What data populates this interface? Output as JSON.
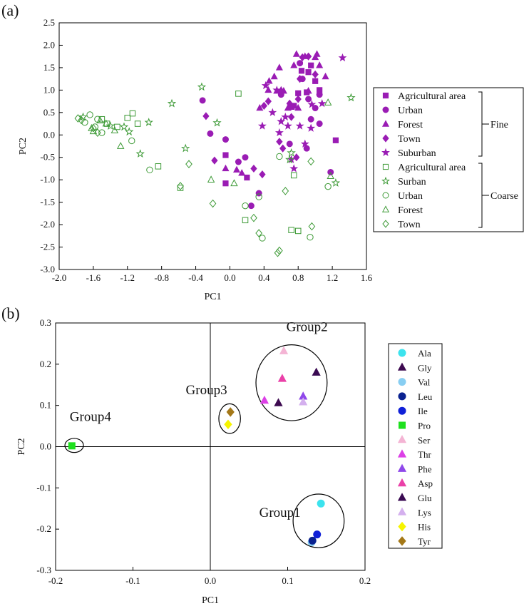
{
  "panels": {
    "a": {
      "label": "(a)"
    },
    "b": {
      "label": "(b)"
    }
  },
  "colors": {
    "fine": "#9a1cb4",
    "coarse": "#3d9a36"
  },
  "chart_data": [
    {
      "type": "scatter",
      "panel": "(a)",
      "xlabel": "PC1",
      "ylabel": "PC2",
      "xlim": [
        -2.0,
        1.6
      ],
      "ylim": [
        -3.0,
        2.5
      ],
      "xticks": [
        -2.0,
        -1.6,
        -1.2,
        -0.8,
        -0.4,
        0.0,
        0.4,
        0.8,
        1.2,
        1.6
      ],
      "xtick_labels": [
        "-2.0",
        "-1.6",
        "-1.2",
        "-0.8",
        "-0.4",
        "0.0",
        "0.4",
        "0.8",
        "1.2",
        "1.6"
      ],
      "yticks": [
        2.5,
        2.0,
        1.5,
        1.0,
        0.5,
        0.0,
        -0.5,
        -1.0,
        -1.5,
        -2.0,
        -2.5,
        -3.0
      ],
      "ytick_labels": [
        "2.5",
        "2.0",
        "1.5",
        "1.0",
        "0.5",
        "0.0",
        "-0.5",
        "-1.0",
        "-1.5",
        "-2.0",
        "-2.5",
        "-3.0"
      ],
      "grid": false,
      "legend_position": "right",
      "legend_groups": [
        {
          "label": "Fine",
          "series": [
            0,
            1,
            2,
            3,
            4
          ]
        },
        {
          "label": "Coarse",
          "series": [
            5,
            6,
            7,
            8,
            9
          ]
        }
      ],
      "series": [
        {
          "name": "Agricultural area",
          "marker": "square",
          "filled": true,
          "color": "#9a1cb4",
          "points": [
            [
              -0.05,
              -0.45
            ],
            [
              0.84,
              1.43
            ],
            [
              0.92,
              1.4
            ],
            [
              0.95,
              1.55
            ],
            [
              0.8,
              0.93
            ],
            [
              1.05,
              1.0
            ],
            [
              0.9,
              0.95
            ],
            [
              1.24,
              -0.12
            ],
            [
              0.2,
              -0.95
            ],
            [
              -0.05,
              -1.08
            ],
            [
              0.75,
              0.65
            ],
            [
              1.0,
              1.2
            ]
          ]
        },
        {
          "name": "Urban",
          "marker": "circle",
          "filled": true,
          "color": "#9a1cb4",
          "points": [
            [
              -0.32,
              0.77
            ],
            [
              -0.23,
              0.03
            ],
            [
              -0.05,
              -0.1
            ],
            [
              0.1,
              -0.6
            ],
            [
              0.18,
              -0.5
            ],
            [
              0.25,
              -1.58
            ],
            [
              0.34,
              -1.3
            ],
            [
              0.82,
              1.6
            ],
            [
              0.85,
              1.25
            ],
            [
              0.92,
              0.8
            ],
            [
              1.0,
              0.6
            ],
            [
              0.95,
              0.35
            ],
            [
              1.05,
              0.25
            ],
            [
              1.18,
              -0.83
            ],
            [
              0.7,
              -0.2
            ],
            [
              0.9,
              -0.3
            ],
            [
              0.6,
              0.9
            ],
            [
              1.05,
              0.9
            ]
          ]
        },
        {
          "name": "Forest",
          "marker": "triangle",
          "filled": true,
          "color": "#9a1cb4",
          "points": [
            [
              -0.05,
              -0.75
            ],
            [
              0.08,
              -0.78
            ],
            [
              0.14,
              -0.85
            ],
            [
              0.35,
              0.6
            ],
            [
              0.45,
              1.0
            ],
            [
              0.55,
              0.98
            ],
            [
              0.6,
              1.0
            ],
            [
              0.63,
              0.98
            ],
            [
              0.68,
              0.6
            ],
            [
              0.75,
              1.55
            ],
            [
              0.78,
              1.8
            ],
            [
              0.88,
              1.75
            ],
            [
              0.92,
              0.98
            ],
            [
              1.0,
              1.73
            ],
            [
              1.02,
              1.8
            ],
            [
              1.05,
              1.55
            ],
            [
              1.12,
              1.3
            ],
            [
              0.52,
              1.3
            ],
            [
              0.46,
              1.2
            ],
            [
              0.58,
              1.5
            ],
            [
              0.72,
              0.62
            ],
            [
              0.8,
              0.6
            ]
          ]
        },
        {
          "name": "Town",
          "marker": "diamond",
          "filled": true,
          "color": "#9a1cb4",
          "points": [
            [
              -0.28,
              0.42
            ],
            [
              -0.18,
              -0.57
            ],
            [
              0.28,
              -0.75
            ],
            [
              0.38,
              -0.88
            ],
            [
              0.4,
              0.65
            ],
            [
              0.45,
              0.75
            ],
            [
              0.58,
              -0.15
            ],
            [
              0.62,
              -0.3
            ],
            [
              0.7,
              0.7
            ],
            [
              0.72,
              0.4
            ],
            [
              0.8,
              0.8
            ],
            [
              0.82,
              1.25
            ],
            [
              0.85,
              1.73
            ],
            [
              0.92,
              1.75
            ],
            [
              1.0,
              1.35
            ],
            [
              0.78,
              -0.5
            ]
          ]
        },
        {
          "name": "Suburban",
          "marker": "star",
          "filled": true,
          "color": "#9a1cb4",
          "points": [
            [
              0.38,
              0.2
            ],
            [
              0.42,
              1.1
            ],
            [
              0.5,
              0.5
            ],
            [
              0.55,
              1.0
            ],
            [
              0.6,
              0.3
            ],
            [
              0.65,
              0.4
            ],
            [
              0.68,
              0.2
            ],
            [
              0.72,
              -0.55
            ],
            [
              0.75,
              -0.75
            ],
            [
              0.82,
              0.2
            ],
            [
              0.88,
              -0.2
            ],
            [
              0.95,
              0.15
            ],
            [
              1.08,
              0.7
            ],
            [
              1.32,
              1.72
            ],
            [
              0.96,
              0.68
            ],
            [
              0.58,
              0.05
            ]
          ]
        },
        {
          "name": "Agricultural area",
          "marker": "square",
          "filled": false,
          "color": "#3d9a36",
          "points": [
            [
              -1.5,
              0.35
            ],
            [
              -1.44,
              0.25
            ],
            [
              -1.32,
              0.18
            ],
            [
              -1.2,
              0.38
            ],
            [
              -1.14,
              0.48
            ],
            [
              -1.08,
              0.25
            ],
            [
              -0.84,
              -0.7
            ],
            [
              -0.58,
              -1.18
            ],
            [
              0.1,
              0.92
            ],
            [
              0.18,
              -1.9
            ],
            [
              0.72,
              -2.12
            ],
            [
              0.8,
              -2.14
            ],
            [
              0.75,
              -0.9
            ]
          ]
        },
        {
          "name": "Surban",
          "marker": "star",
          "filled": false,
          "color": "#3d9a36",
          "points": [
            [
              -1.72,
              0.4
            ],
            [
              -1.4,
              0.2
            ],
            [
              -1.24,
              0.18
            ],
            [
              -1.18,
              0.07
            ],
            [
              -1.05,
              -0.42
            ],
            [
              -0.95,
              0.28
            ],
            [
              -0.68,
              0.7
            ],
            [
              -0.52,
              -0.3
            ],
            [
              -0.33,
              1.07
            ],
            [
              -0.15,
              0.27
            ],
            [
              0.72,
              -0.4
            ],
            [
              1.24,
              -1.07
            ],
            [
              1.42,
              0.83
            ],
            [
              0.7,
              -0.55
            ]
          ]
        },
        {
          "name": "Urban",
          "marker": "circle",
          "filled": false,
          "color": "#3d9a36",
          "points": [
            [
              -1.64,
              0.45
            ],
            [
              -1.55,
              0.35
            ],
            [
              -1.7,
              0.28
            ],
            [
              -1.5,
              0.05
            ],
            [
              -1.15,
              -0.13
            ],
            [
              -0.94,
              -0.78
            ],
            [
              0.18,
              -1.58
            ],
            [
              0.34,
              -1.38
            ],
            [
              0.38,
              -2.3
            ],
            [
              0.94,
              -2.28
            ],
            [
              1.15,
              -1.15
            ],
            [
              0.58,
              -0.48
            ],
            [
              -1.58,
              0.18
            ]
          ]
        },
        {
          "name": "Forest",
          "marker": "triangle",
          "filled": false,
          "color": "#3d9a36",
          "points": [
            [
              -1.62,
              0.15
            ],
            [
              -1.52,
              0.32
            ],
            [
              -1.45,
              0.25
            ],
            [
              -1.35,
              0.1
            ],
            [
              -1.28,
              -0.25
            ],
            [
              -0.22,
              -1.0
            ],
            [
              0.05,
              -1.08
            ],
            [
              1.18,
              -0.92
            ],
            [
              1.15,
              0.72
            ],
            [
              -1.6,
              0.08
            ]
          ]
        },
        {
          "name": "Town",
          "marker": "diamond",
          "filled": false,
          "color": "#3d9a36",
          "points": [
            [
              -1.78,
              0.37
            ],
            [
              -1.74,
              0.33
            ],
            [
              -1.6,
              0.15
            ],
            [
              -1.55,
              0.05
            ],
            [
              -0.48,
              -0.65
            ],
            [
              -0.58,
              -1.14
            ],
            [
              -0.2,
              -1.53
            ],
            [
              0.28,
              -1.85
            ],
            [
              0.34,
              -2.19
            ],
            [
              0.56,
              -2.63
            ],
            [
              0.58,
              -2.58
            ],
            [
              0.96,
              -2.04
            ],
            [
              0.95,
              -0.59
            ],
            [
              0.65,
              -1.25
            ]
          ]
        }
      ]
    },
    {
      "type": "scatter",
      "panel": "(b)",
      "xlabel": "PC1",
      "ylabel": "PC2",
      "xlim": [
        -0.2,
        0.2
      ],
      "ylim": [
        -0.3,
        0.3
      ],
      "xticks": [
        -0.2,
        -0.1,
        0.0,
        0.1,
        0.2
      ],
      "xtick_labels": [
        "-0.2",
        "-0.1",
        "0.0",
        "0.1",
        "0.2"
      ],
      "yticks": [
        0.3,
        0.2,
        0.1,
        0.0,
        -0.1,
        -0.2,
        -0.3
      ],
      "ytick_labels": [
        "0.3",
        "0.2",
        "0.1",
        "0.0",
        "-0.1",
        "-0.2",
        "-0.3"
      ],
      "grid": false,
      "zero_lines": true,
      "legend_position": "right",
      "series": [
        {
          "name": "Ala",
          "marker": "circle",
          "color": "#3ce3ee",
          "points": [
            [
              0.143,
              -0.138
            ]
          ]
        },
        {
          "name": "Gly",
          "marker": "triangle",
          "color": "#3d0a50",
          "points": [
            [
              0.088,
              0.106
            ]
          ]
        },
        {
          "name": "Val",
          "marker": "circle",
          "color": "#88cef2",
          "points": [
            [
              0.131,
              -0.232
            ]
          ]
        },
        {
          "name": "Leu",
          "marker": "circle",
          "color": "#0a2290",
          "points": [
            [
              0.132,
              -0.228
            ]
          ]
        },
        {
          "name": "Ile",
          "marker": "circle",
          "color": "#1020d8",
          "points": [
            [
              0.138,
              -0.213
            ]
          ]
        },
        {
          "name": "Pro",
          "marker": "square",
          "color": "#1ee01e",
          "points": [
            [
              -0.179,
              0.002
            ]
          ]
        },
        {
          "name": "Ser",
          "marker": "triangle",
          "color": "#f4b4d4",
          "points": [
            [
              0.095,
              0.232
            ]
          ]
        },
        {
          "name": "Thr",
          "marker": "triangle",
          "color": "#dc40e6",
          "points": [
            [
              0.07,
              0.112
            ]
          ]
        },
        {
          "name": "Phe",
          "marker": "triangle",
          "color": "#8f48ea",
          "points": [
            [
              0.12,
              0.122
            ]
          ]
        },
        {
          "name": "Asp",
          "marker": "triangle",
          "color": "#ea40a8",
          "points": [
            [
              0.093,
              0.165
            ]
          ]
        },
        {
          "name": "Glu",
          "marker": "triangle",
          "color": "#3a0a52",
          "points": [
            [
              0.137,
              0.18
            ]
          ]
        },
        {
          "name": "Lys",
          "marker": "triangle",
          "color": "#d4b0ee",
          "points": [
            [
              0.12,
              0.108
            ]
          ]
        },
        {
          "name": "His",
          "marker": "diamond",
          "color": "#f6f400",
          "points": [
            [
              0.023,
              0.054
            ]
          ]
        },
        {
          "name": "Tyr",
          "marker": "diamond",
          "color": "#a47818",
          "points": [
            [
              0.026,
              0.084
            ]
          ]
        }
      ],
      "annotations": [
        {
          "text": "Group1",
          "center": [
            0.14,
            -0.18
          ],
          "radius": [
            0.033,
            0.065
          ]
        },
        {
          "text": "Group2",
          "center": [
            0.105,
            0.155
          ],
          "radius": [
            0.046,
            0.092
          ]
        },
        {
          "text": "Group3",
          "center": [
            0.025,
            0.068
          ],
          "radius": [
            0.014,
            0.036
          ]
        },
        {
          "text": "Group4",
          "center": [
            -0.176,
            0.003
          ],
          "radius": [
            0.012,
            0.017
          ]
        }
      ]
    }
  ]
}
